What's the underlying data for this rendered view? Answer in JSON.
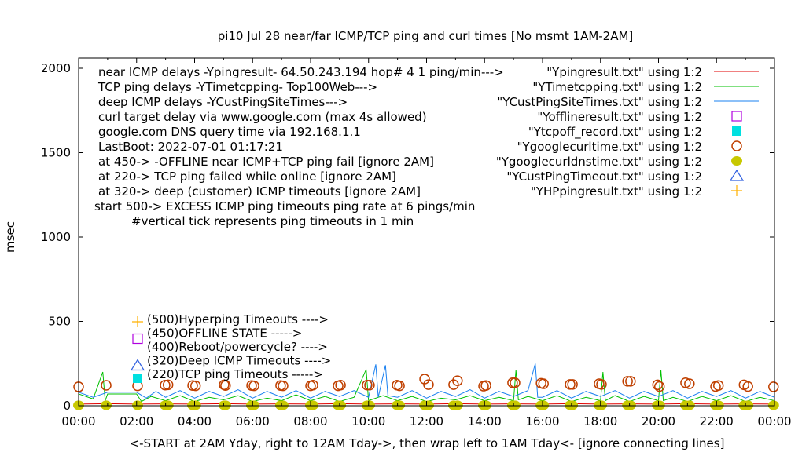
{
  "chart_data": {
    "type": "line",
    "title": "pi10 Jul 28  near/far ICMP/TCP ping and curl times [No msmt 1AM-2AM]",
    "xlabel": "<-START at 2AM Yday, right to 12AM Tday->, then wrap left to 1AM Tday<- [ignore connecting lines]",
    "ylabel": "msec",
    "ylim": [
      0,
      2000
    ],
    "yticks": [
      "0",
      "500",
      "1000",
      "1500",
      "2000"
    ],
    "xlim": [
      "00:00",
      "24:00"
    ],
    "xticks": [
      "00:00",
      "02:00",
      "04:00",
      "06:00",
      "08:00",
      "10:00",
      "12:00",
      "14:00",
      "16:00",
      "18:00",
      "20:00",
      "22:00",
      "00:00"
    ],
    "grid": false,
    "legend_placement": "top-right",
    "notes": [
      "near ICMP delays -Ypingresult- 64.50.243.194 hop# 4 1 ping/min--->",
      "TCP ping delays -YTimetcpping- Top100Web--->",
      "deep ICMP delays -YCustPingSiteTimes--->",
      "curl target delay via www.google.com (max 4s allowed)",
      "google.com DNS query time via 192.168.1.1",
      "LastBoot: 2022-07-01 01:17:21",
      "at 450-> -OFFLINE near ICMP+TCP ping fail [ignore 2AM]",
      "at 220-> TCP ping failed while online [ignore 2AM]",
      "at 320-> deep (customer) ICMP timeouts [ignore 2AM]",
      "start 500-> EXCESS ICMP ping timeouts ping rate at 6 pings/min",
      "#vertical tick represents ping timeouts in 1 min"
    ],
    "timeout_labels": [
      {
        "text": "(500)Hyperping Timeouts ---->",
        "marker": "plus",
        "color": "#ffb000"
      },
      {
        "text": "(450)OFFLINE STATE ----->",
        "marker": "square-open",
        "color": "#b000e0"
      },
      {
        "text": "(400)Reboot/powercycle? ---->",
        "marker": "",
        "color": ""
      },
      {
        "text": "(320)Deep ICMP Timeouts ---->",
        "marker": "triangle",
        "color": "#3060e0"
      },
      {
        "text": "(220)TCP ping Timeouts ----->",
        "marker": "square-filled",
        "color": "#00e0e0"
      }
    ],
    "series": [
      {
        "name": "\"Ypingresult.txt\" using 1:2",
        "style": "line",
        "color": "#e00000",
        "points": [
          [
            "00:00",
            10
          ],
          [
            "01:00",
            12
          ],
          [
            "02:00",
            10
          ],
          [
            "03:00",
            11
          ],
          [
            "04:00",
            10
          ],
          [
            "05:00",
            12
          ],
          [
            "06:00",
            10
          ],
          [
            "07:00",
            11
          ],
          [
            "08:00",
            10
          ],
          [
            "09:00",
            12
          ],
          [
            "10:00",
            10
          ],
          [
            "11:00",
            11
          ],
          [
            "12:00",
            10
          ],
          [
            "13:00",
            12
          ],
          [
            "14:00",
            10
          ],
          [
            "15:00",
            11
          ],
          [
            "16:00",
            10
          ],
          [
            "17:00",
            12
          ],
          [
            "18:00",
            10
          ],
          [
            "19:00",
            11
          ],
          [
            "20:00",
            10
          ],
          [
            "21:00",
            12
          ],
          [
            "22:00",
            10
          ],
          [
            "23:00",
            11
          ],
          [
            "24:00",
            10
          ]
        ]
      },
      {
        "name": "\"YTimetcpping.txt\" using 1:2",
        "style": "line",
        "color": "#00c000",
        "points": [
          [
            "00:00",
            70
          ],
          [
            "00:30",
            40
          ],
          [
            "00:50",
            200
          ],
          [
            "00:55",
            30
          ],
          [
            "01:00",
            70
          ],
          [
            "02:00",
            70
          ],
          [
            "02:10",
            25
          ],
          [
            "02:30",
            55
          ],
          [
            "03:00",
            30
          ],
          [
            "03:30",
            60
          ],
          [
            "04:00",
            25
          ],
          [
            "04:30",
            50
          ],
          [
            "05:00",
            35
          ],
          [
            "05:30",
            60
          ],
          [
            "06:00",
            25
          ],
          [
            "06:30",
            45
          ],
          [
            "07:00",
            30
          ],
          [
            "07:30",
            65
          ],
          [
            "08:00",
            30
          ],
          [
            "08:30",
            55
          ],
          [
            "09:00",
            25
          ],
          [
            "09:30",
            50
          ],
          [
            "09:55",
            215
          ],
          [
            "10:00",
            30
          ],
          [
            "10:30",
            60
          ],
          [
            "11:00",
            30
          ],
          [
            "11:30",
            55
          ],
          [
            "12:00",
            25
          ],
          [
            "12:30",
            45
          ],
          [
            "13:00",
            35
          ],
          [
            "13:30",
            60
          ],
          [
            "14:00",
            30
          ],
          [
            "14:30",
            50
          ],
          [
            "15:00",
            30
          ],
          [
            "15:05",
            210
          ],
          [
            "15:10",
            35
          ],
          [
            "15:30",
            55
          ],
          [
            "16:00",
            30
          ],
          [
            "16:30",
            60
          ],
          [
            "17:00",
            25
          ],
          [
            "17:30",
            50
          ],
          [
            "18:00",
            30
          ],
          [
            "18:05",
            200
          ],
          [
            "18:10",
            30
          ],
          [
            "18:30",
            60
          ],
          [
            "19:00",
            25
          ],
          [
            "19:30",
            55
          ],
          [
            "20:00",
            30
          ],
          [
            "20:05",
            210
          ],
          [
            "20:10",
            30
          ],
          [
            "20:30",
            50
          ],
          [
            "21:00",
            25
          ],
          [
            "21:30",
            55
          ],
          [
            "22:00",
            30
          ],
          [
            "22:30",
            60
          ],
          [
            "23:00",
            25
          ],
          [
            "23:30",
            50
          ],
          [
            "24:00",
            30
          ]
        ]
      },
      {
        "name": "\"YCustPingSiteTimes.txt\" using 1:2",
        "style": "line",
        "color": "#1a80f0",
        "points": [
          [
            "00:00",
            80
          ],
          [
            "00:30",
            50
          ],
          [
            "01:00",
            80
          ],
          [
            "02:00",
            80
          ],
          [
            "02:20",
            45
          ],
          [
            "02:40",
            85
          ],
          [
            "03:00",
            50
          ],
          [
            "03:30",
            90
          ],
          [
            "04:00",
            45
          ],
          [
            "04:30",
            85
          ],
          [
            "05:00",
            55
          ],
          [
            "05:30",
            95
          ],
          [
            "06:00",
            45
          ],
          [
            "06:30",
            85
          ],
          [
            "07:00",
            50
          ],
          [
            "07:30",
            90
          ],
          [
            "08:00",
            45
          ],
          [
            "08:30",
            85
          ],
          [
            "09:00",
            55
          ],
          [
            "09:30",
            90
          ],
          [
            "10:00",
            50
          ],
          [
            "10:15",
            245
          ],
          [
            "10:20",
            50
          ],
          [
            "10:35",
            240
          ],
          [
            "10:40",
            60
          ],
          [
            "11:00",
            50
          ],
          [
            "11:30",
            90
          ],
          [
            "12:00",
            45
          ],
          [
            "12:30",
            85
          ],
          [
            "13:00",
            55
          ],
          [
            "13:30",
            95
          ],
          [
            "14:00",
            45
          ],
          [
            "14:30",
            85
          ],
          [
            "15:00",
            55
          ],
          [
            "15:30",
            90
          ],
          [
            "15:45",
            250
          ],
          [
            "15:50",
            50
          ],
          [
            "16:00",
            50
          ],
          [
            "16:30",
            90
          ],
          [
            "17:00",
            45
          ],
          [
            "17:30",
            85
          ],
          [
            "18:00",
            55
          ],
          [
            "18:30",
            90
          ],
          [
            "19:00",
            45
          ],
          [
            "19:30",
            85
          ],
          [
            "20:00",
            55
          ],
          [
            "20:30",
            90
          ],
          [
            "21:00",
            45
          ],
          [
            "21:30",
            85
          ],
          [
            "22:00",
            55
          ],
          [
            "22:30",
            90
          ],
          [
            "23:00",
            45
          ],
          [
            "23:30",
            85
          ],
          [
            "24:00",
            50
          ]
        ]
      },
      {
        "name": "\"Yofflineresult.txt\" using 1:2",
        "style": "square-open",
        "color": "#b000e0",
        "points": []
      },
      {
        "name": "\"Ytcpoff_record.txt\" using 1:2",
        "style": "square-filled",
        "color": "#00e0e0",
        "points": []
      },
      {
        "name": "\"Ygooglecurltime.txt\" using 1:2",
        "style": "circle-open",
        "color": "#c04000",
        "points": [
          [
            "00:00",
            112
          ],
          [
            "00:57",
            121
          ],
          [
            "02:02",
            118
          ],
          [
            "02:59",
            122
          ],
          [
            "03:05",
            124
          ],
          [
            "03:56",
            120
          ],
          [
            "04:02",
            118
          ],
          [
            "05:01",
            124
          ],
          [
            "05:04",
            120
          ],
          [
            "05:58",
            120
          ],
          [
            "06:03",
            118
          ],
          [
            "06:58",
            120
          ],
          [
            "07:03",
            118
          ],
          [
            "08:00",
            118
          ],
          [
            "08:05",
            122
          ],
          [
            "08:57",
            118
          ],
          [
            "09:02",
            122
          ],
          [
            "09:57",
            122
          ],
          [
            "10:02",
            122
          ],
          [
            "10:59",
            122
          ],
          [
            "11:04",
            118
          ],
          [
            "11:56",
            158
          ],
          [
            "12:04",
            125
          ],
          [
            "12:56",
            125
          ],
          [
            "13:04",
            148
          ],
          [
            "13:58",
            116
          ],
          [
            "14:03",
            120
          ],
          [
            "14:58",
            136
          ],
          [
            "15:03",
            136
          ],
          [
            "15:57",
            133
          ],
          [
            "16:02",
            130
          ],
          [
            "16:57",
            126
          ],
          [
            "17:02",
            126
          ],
          [
            "17:57",
            130
          ],
          [
            "18:02",
            126
          ],
          [
            "18:56",
            145
          ],
          [
            "19:02",
            145
          ],
          [
            "19:58",
            124
          ],
          [
            "20:02",
            114
          ],
          [
            "20:56",
            136
          ],
          [
            "21:04",
            130
          ],
          [
            "21:58",
            114
          ],
          [
            "22:04",
            120
          ],
          [
            "22:57",
            124
          ],
          [
            "23:05",
            114
          ],
          [
            "23:58",
            112
          ]
        ]
      },
      {
        "name": "\"Ygooglecurldnstime.txt\" using 1:2",
        "style": "circle-filled",
        "color": "#c8c800",
        "points": [
          [
            "00:00",
            3
          ],
          [
            "00:57",
            3
          ],
          [
            "02:02",
            3
          ],
          [
            "02:59",
            3
          ],
          [
            "03:05",
            3
          ],
          [
            "03:56",
            3
          ],
          [
            "04:02",
            3
          ],
          [
            "05:01",
            3
          ],
          [
            "05:04",
            3
          ],
          [
            "05:58",
            3
          ],
          [
            "06:03",
            3
          ],
          [
            "06:58",
            3
          ],
          [
            "07:03",
            3
          ],
          [
            "08:00",
            3
          ],
          [
            "08:05",
            3
          ],
          [
            "08:57",
            3
          ],
          [
            "09:02",
            3
          ],
          [
            "09:57",
            3
          ],
          [
            "10:02",
            3
          ],
          [
            "10:59",
            3
          ],
          [
            "11:04",
            3
          ],
          [
            "11:56",
            3
          ],
          [
            "12:04",
            3
          ],
          [
            "12:56",
            3
          ],
          [
            "13:04",
            3
          ],
          [
            "13:58",
            3
          ],
          [
            "14:03",
            3
          ],
          [
            "14:58",
            3
          ],
          [
            "15:03",
            3
          ],
          [
            "15:57",
            3
          ],
          [
            "16:02",
            3
          ],
          [
            "16:57",
            3
          ],
          [
            "17:02",
            3
          ],
          [
            "17:57",
            3
          ],
          [
            "18:02",
            3
          ],
          [
            "18:56",
            3
          ],
          [
            "19:02",
            3
          ],
          [
            "19:58",
            3
          ],
          [
            "20:02",
            3
          ],
          [
            "20:56",
            3
          ],
          [
            "21:04",
            3
          ],
          [
            "21:58",
            3
          ],
          [
            "22:04",
            3
          ],
          [
            "22:57",
            3
          ],
          [
            "23:05",
            3
          ],
          [
            "23:58",
            3
          ]
        ]
      },
      {
        "name": "\"YCustPingTimeout.txt\" using 1:2",
        "style": "triangle",
        "color": "#3060e0",
        "points": []
      },
      {
        "name": "\"YHPpingresult.txt\" using 1:2",
        "style": "plus",
        "color": "#ffb000",
        "points": []
      }
    ]
  }
}
